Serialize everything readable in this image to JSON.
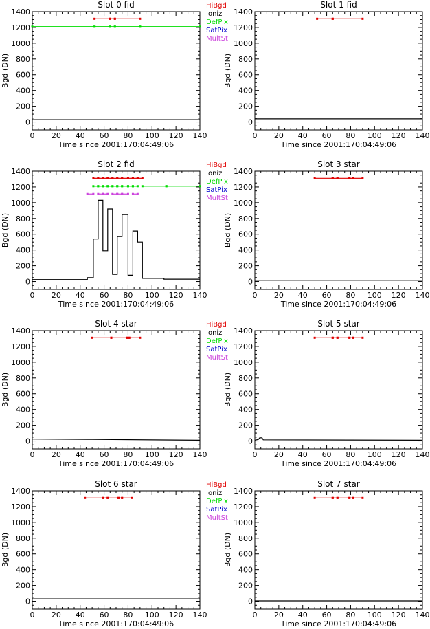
{
  "colors": {
    "HiBgd": "#e00000",
    "Ioniz": "#000000",
    "DefPix": "#00dd00",
    "SatPix": "#0000cc",
    "MultSt": "#cc44dd",
    "axis": "#000000",
    "background": "#ffffff"
  },
  "legend_items": [
    {
      "key": "HiBgd",
      "label": "HiBgd"
    },
    {
      "key": "Ioniz",
      "label": "Ioniz"
    },
    {
      "key": "DefPix",
      "label": "DefPix"
    },
    {
      "key": "SatPix",
      "label": "SatPix"
    },
    {
      "key": "MultSt",
      "label": "MultSt"
    }
  ],
  "chart_data": [
    {
      "type": "line",
      "title": "Slot 0 fid",
      "xlabel": "Time since 2001:170:04:49:06",
      "ylabel": "Bgd (DN)",
      "xlim": [
        0,
        140
      ],
      "ylim": [
        -100,
        1400
      ],
      "xticks": [
        "0",
        "20",
        "40",
        "60",
        "80",
        "100",
        "120",
        "140"
      ],
      "yticks": [
        "0",
        "200",
        "400",
        "600",
        "800",
        "1000",
        "1200",
        "1400"
      ],
      "show_legend": true,
      "series": [
        {
          "kind": "bgd",
          "step": false,
          "x": [
            0,
            140
          ],
          "y": [
            30,
            30
          ]
        },
        {
          "kind": "HiBgd",
          "y": 1310,
          "segments": [
            [
              52,
              65
            ],
            [
              65,
              69
            ],
            [
              69,
              90
            ]
          ]
        },
        {
          "kind": "DefPix",
          "y": 1210,
          "segments": [
            [
              0,
              52
            ],
            [
              52,
              65
            ],
            [
              65,
              69
            ],
            [
              69,
              90
            ],
            [
              90,
              140
            ]
          ]
        }
      ]
    },
    {
      "type": "line",
      "title": "Slot 1 fid",
      "xlabel": "Time since 2001:170:04:49:06",
      "ylabel": "Bgd (DN)",
      "xlim": [
        0,
        140
      ],
      "ylim": [
        -100,
        1400
      ],
      "xticks": [
        "0",
        "20",
        "40",
        "60",
        "80",
        "100",
        "120",
        "140"
      ],
      "yticks": [
        "0",
        "200",
        "400",
        "600",
        "800",
        "1000",
        "1200",
        "1400"
      ],
      "show_legend": false,
      "series": [
        {
          "kind": "bgd",
          "step": false,
          "x": [
            0,
            140
          ],
          "y": [
            40,
            40
          ]
        },
        {
          "kind": "HiBgd",
          "y": 1310,
          "segments": [
            [
              52,
              65
            ],
            [
              65,
              90
            ]
          ]
        }
      ]
    },
    {
      "type": "line",
      "title": "Slot 2 fid",
      "xlabel": "Time since 2001:170:04:49:06",
      "ylabel": "Bgd (DN)",
      "xlim": [
        0,
        140
      ],
      "ylim": [
        -100,
        1400
      ],
      "xticks": [
        "0",
        "20",
        "40",
        "60",
        "80",
        "100",
        "120",
        "140"
      ],
      "yticks": [
        "0",
        "200",
        "400",
        "600",
        "800",
        "1000",
        "1200",
        "1400"
      ],
      "show_legend": true,
      "series": [
        {
          "kind": "bgd",
          "step": true,
          "x": [
            0,
            46,
            51,
            55,
            59,
            63,
            67,
            71,
            75,
            80,
            84,
            88,
            92,
            110,
            140
          ],
          "y": [
            25,
            50,
            540,
            1030,
            390,
            920,
            90,
            570,
            850,
            80,
            640,
            500,
            40,
            30,
            30
          ]
        },
        {
          "kind": "HiBgd",
          "y": 1310,
          "segments": [
            [
              51,
              55
            ],
            [
              55,
              59
            ],
            [
              59,
              63
            ],
            [
              63,
              67
            ],
            [
              67,
              71
            ],
            [
              71,
              75
            ],
            [
              75,
              80
            ],
            [
              80,
              84
            ],
            [
              84,
              88
            ],
            [
              88,
              92
            ]
          ]
        },
        {
          "kind": "DefPix",
          "y": 1210,
          "segments": [
            [
              51,
              55
            ],
            [
              55,
              59
            ],
            [
              59,
              63
            ],
            [
              63,
              67
            ],
            [
              67,
              71
            ],
            [
              71,
              75
            ],
            [
              75,
              80
            ],
            [
              80,
              84
            ],
            [
              84,
              88
            ],
            [
              92,
              112
            ],
            [
              112,
              140
            ]
          ]
        },
        {
          "kind": "MultSt",
          "y": 1110,
          "segments": [
            [
              46,
              51
            ],
            [
              55,
              59
            ],
            [
              59,
              63
            ],
            [
              67,
              71
            ],
            [
              71,
              75
            ],
            [
              75,
              80
            ],
            [
              84,
              88
            ]
          ]
        }
      ]
    },
    {
      "type": "line",
      "title": "Slot 3 star",
      "xlabel": "Time since 2001:170:04:49:06",
      "ylabel": "Bgd (DN)",
      "xlim": [
        0,
        140
      ],
      "ylim": [
        -100,
        1400
      ],
      "xticks": [
        "0",
        "20",
        "40",
        "60",
        "80",
        "100",
        "120",
        "140"
      ],
      "yticks": [
        "0",
        "200",
        "400",
        "600",
        "800",
        "1000",
        "1200",
        "1400"
      ],
      "show_legend": false,
      "series": [
        {
          "kind": "bgd",
          "step": false,
          "x": [
            0,
            140
          ],
          "y": [
            15,
            15
          ]
        },
        {
          "kind": "HiBgd",
          "y": 1310,
          "segments": [
            [
              50,
              65
            ],
            [
              65,
              69
            ],
            [
              69,
              79
            ],
            [
              79,
              82
            ],
            [
              82,
              90
            ]
          ]
        }
      ]
    },
    {
      "type": "line",
      "title": "Slot 4 star",
      "xlabel": "Time since 2001:170:04:49:06",
      "ylabel": "Bgd (DN)",
      "xlim": [
        0,
        140
      ],
      "ylim": [
        -100,
        1400
      ],
      "xticks": [
        "0",
        "20",
        "40",
        "60",
        "80",
        "100",
        "120",
        "140"
      ],
      "yticks": [
        "0",
        "200",
        "400",
        "600",
        "800",
        "1000",
        "1200",
        "1400"
      ],
      "show_legend": true,
      "series": [
        {
          "kind": "bgd",
          "step": false,
          "x": [
            0,
            50,
            140
          ],
          "y": [
            25,
            20,
            10
          ]
        },
        {
          "kind": "HiBgd",
          "y": 1310,
          "segments": [
            [
              50,
              66
            ],
            [
              66,
              79
            ],
            [
              79,
              81
            ],
            [
              81,
              90
            ]
          ]
        }
      ]
    },
    {
      "type": "line",
      "title": "Slot 5 star",
      "xlabel": "Time since 2001:170:04:49:06",
      "ylabel": "Bgd (DN)",
      "xlim": [
        0,
        140
      ],
      "ylim": [
        -100,
        1400
      ],
      "xticks": [
        "0",
        "20",
        "40",
        "60",
        "80",
        "100",
        "120",
        "140"
      ],
      "yticks": [
        "0",
        "200",
        "400",
        "600",
        "800",
        "1000",
        "1200",
        "1400"
      ],
      "show_legend": false,
      "series": [
        {
          "kind": "bgd",
          "step": false,
          "x": [
            0,
            3,
            4,
            6,
            7,
            140
          ],
          "y": [
            10,
            20,
            40,
            40,
            15,
            10
          ]
        },
        {
          "kind": "HiBgd",
          "y": 1310,
          "segments": [
            [
              50,
              65
            ],
            [
              65,
              69
            ],
            [
              69,
              79
            ],
            [
              79,
              82
            ],
            [
              82,
              90
            ]
          ]
        }
      ]
    },
    {
      "type": "line",
      "title": "Slot 6 star",
      "xlabel": "Time since 2001:170:04:49:06",
      "ylabel": "Bgd (DN)",
      "xlim": [
        0,
        140
      ],
      "ylim": [
        -100,
        1400
      ],
      "xticks": [
        "0",
        "20",
        "40",
        "60",
        "80",
        "100",
        "120",
        "140"
      ],
      "yticks": [
        "0",
        "200",
        "400",
        "600",
        "800",
        "1000",
        "1200",
        "1400"
      ],
      "show_legend": true,
      "series": [
        {
          "kind": "bgd",
          "step": false,
          "x": [
            0,
            140
          ],
          "y": [
            30,
            30
          ]
        },
        {
          "kind": "HiBgd",
          "y": 1310,
          "segments": [
            [
              44,
              59
            ],
            [
              59,
              63
            ],
            [
              63,
              72
            ],
            [
              72,
              75
            ],
            [
              75,
              83
            ]
          ]
        }
      ]
    },
    {
      "type": "line",
      "title": "Slot 7 star",
      "xlabel": "Time since 2001:170:04:49:06",
      "ylabel": "Bgd (DN)",
      "xlim": [
        0,
        140
      ],
      "ylim": [
        -100,
        1400
      ],
      "xticks": [
        "0",
        "20",
        "40",
        "60",
        "80",
        "100",
        "120",
        "140"
      ],
      "yticks": [
        "0",
        "200",
        "400",
        "600",
        "800",
        "1000",
        "1200",
        "1400"
      ],
      "show_legend": false,
      "series": [
        {
          "kind": "bgd",
          "step": false,
          "x": [
            0,
            140
          ],
          "y": [
            5,
            5
          ]
        },
        {
          "kind": "HiBgd",
          "y": 1310,
          "segments": [
            [
              50,
              65
            ],
            [
              65,
              69
            ],
            [
              69,
              79
            ],
            [
              79,
              82
            ],
            [
              82,
              90
            ]
          ]
        }
      ]
    }
  ]
}
